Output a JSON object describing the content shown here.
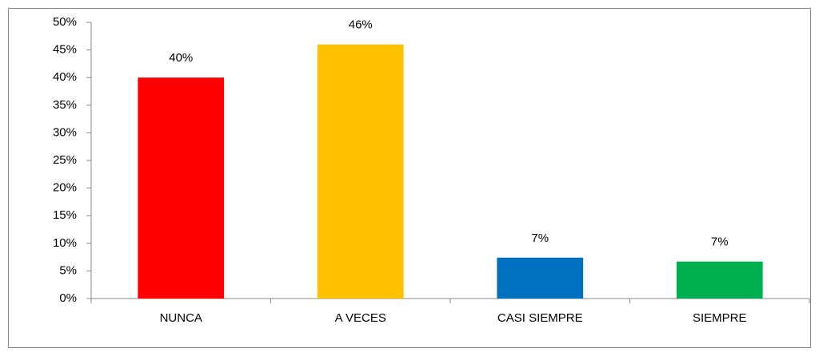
{
  "chart_data": {
    "type": "bar",
    "categories": [
      "NUNCA",
      "A VECES",
      "CASI SIEMPRE",
      "SIEMPRE"
    ],
    "values": [
      40,
      46,
      7.4,
      6.7
    ],
    "value_labels": [
      "40%",
      "46%",
      "7%",
      "7%"
    ],
    "colors": [
      "#ff0000",
      "#ffc000",
      "#0070c0",
      "#00b050"
    ],
    "ylim": [
      0,
      50
    ],
    "yticks": [
      {
        "value": 0,
        "label": "0%"
      },
      {
        "value": 5,
        "label": "5%"
      },
      {
        "value": 10,
        "label": "10%"
      },
      {
        "value": 15,
        "label": "15%"
      },
      {
        "value": 20,
        "label": "20%"
      },
      {
        "value": 25,
        "label": "25%"
      },
      {
        "value": 30,
        "label": "30%"
      },
      {
        "value": 35,
        "label": "35%"
      },
      {
        "value": 40,
        "label": "40%"
      },
      {
        "value": 45,
        "label": "45%"
      },
      {
        "value": 50,
        "label": "50%"
      }
    ],
    "grid": false
  }
}
